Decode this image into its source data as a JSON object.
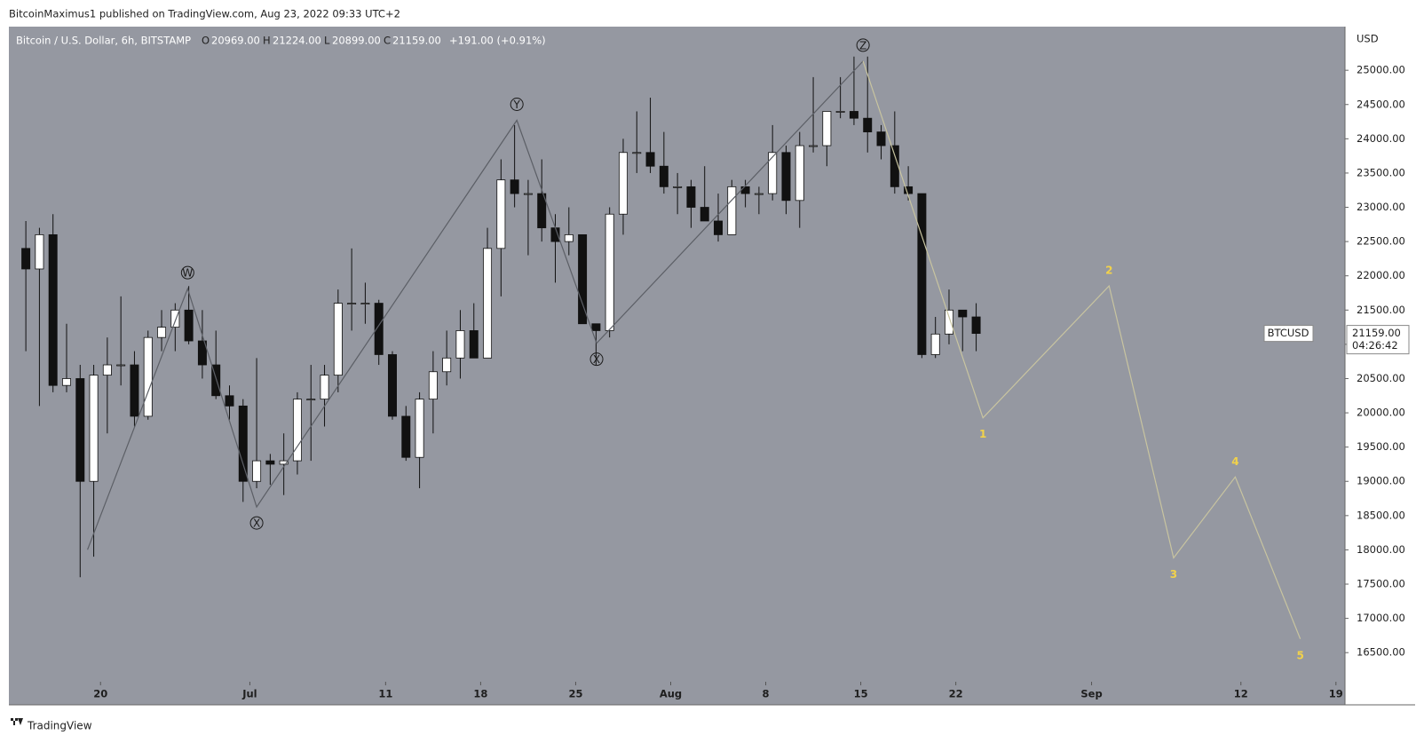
{
  "header": {
    "published": "BitcoinMaximus1 published on TradingView.com, Aug 23, 2022 09:33 UTC+2",
    "brand": "TradingView"
  },
  "chart_data": {
    "type": "candlestick",
    "legend": {
      "symbol": "Bitcoin / U.S. Dollar, 6h, BITSTAMP",
      "o_label": "O",
      "open": "20969.00",
      "h_label": "H",
      "high": "21224.00",
      "l_label": "L",
      "low": "20899.00",
      "c_label": "C",
      "close": "21159.00",
      "change": "+191.00 (+0.91%)"
    },
    "currency": "USD",
    "last": {
      "label": "BTCUSD",
      "price": 21159,
      "price_label": "21159.00",
      "countdown": "04:26:42"
    },
    "colors": {
      "up": "#ffffff",
      "down": "#111111",
      "wick": "#111111",
      "background": "#9598a1"
    },
    "x": [
      "2022-06-14",
      "2022-06-15",
      "2022-06-16",
      "2022-06-17",
      "2022-06-18",
      "2022-06-19",
      "2022-06-20",
      "2022-06-21",
      "2022-06-22",
      "2022-06-23",
      "2022-06-24",
      "2022-06-25",
      "2022-06-26",
      "2022-06-27",
      "2022-06-28",
      "2022-06-29",
      "2022-06-30",
      "2022-07-01",
      "2022-07-02",
      "2022-07-03",
      "2022-07-04",
      "2022-07-05",
      "2022-07-06",
      "2022-07-07",
      "2022-07-08",
      "2022-07-09",
      "2022-07-10",
      "2022-07-11",
      "2022-07-12",
      "2022-07-13",
      "2022-07-14",
      "2022-07-15",
      "2022-07-16",
      "2022-07-17",
      "2022-07-18",
      "2022-07-19",
      "2022-07-20",
      "2022-07-21",
      "2022-07-22",
      "2022-07-23",
      "2022-07-24",
      "2022-07-25",
      "2022-07-26",
      "2022-07-27",
      "2022-07-28",
      "2022-07-29",
      "2022-07-30",
      "2022-07-31",
      "2022-08-01",
      "2022-08-02",
      "2022-08-03",
      "2022-08-04",
      "2022-08-05",
      "2022-08-06",
      "2022-08-07",
      "2022-08-08",
      "2022-08-09",
      "2022-08-10",
      "2022-08-11",
      "2022-08-12",
      "2022-08-13",
      "2022-08-14",
      "2022-08-15",
      "2022-08-16",
      "2022-08-17",
      "2022-08-18",
      "2022-08-19",
      "2022-08-20",
      "2022-08-21",
      "2022-08-22",
      "2022-08-23"
    ],
    "open": [
      22400,
      22100,
      22600,
      20400,
      20500,
      19000,
      20550,
      20700,
      20700,
      19950,
      21100,
      21250,
      21500,
      21050,
      20700,
      20250,
      20100,
      19000,
      19300,
      19250,
      19300,
      20200,
      20200,
      20550,
      21600,
      21600,
      21600,
      20850,
      19950,
      19350,
      20200,
      20600,
      20800,
      21200,
      20800,
      22400,
      23400,
      23200,
      23200,
      22700,
      22500,
      22600,
      21300,
      21200,
      22900,
      23800,
      23800,
      23600,
      23300,
      23300,
      23000,
      22800,
      22600,
      23300,
      23200,
      23200,
      23800,
      23100,
      23900,
      23900,
      24400,
      24400,
      24300,
      24100,
      23900,
      23300,
      23200,
      20850,
      21150,
      21500,
      21400
    ],
    "high": [
      22800,
      22700,
      22900,
      21300,
      20700,
      20700,
      21100,
      21700,
      20900,
      21200,
      21500,
      21600,
      21850,
      21500,
      21200,
      20400,
      20200,
      20800,
      19400,
      19700,
      20300,
      20700,
      20700,
      21800,
      22400,
      21900,
      21650,
      20900,
      20100,
      20300,
      20900,
      21200,
      21500,
      21600,
      22700,
      23700,
      24200,
      23400,
      23700,
      22900,
      23000,
      22600,
      21300,
      23000,
      24000,
      24400,
      24600,
      24100,
      23500,
      23400,
      23600,
      23200,
      23400,
      23400,
      23300,
      24200,
      23900,
      24100,
      24900,
      24400,
      24900,
      25200,
      25200,
      24200,
      24400,
      23600,
      23200,
      21400,
      21800,
      21500,
      21600
    ],
    "low": [
      20900,
      20100,
      20300,
      20300,
      17600,
      17900,
      19700,
      20400,
      19800,
      19900,
      20900,
      20900,
      21000,
      20500,
      20200,
      19900,
      18700,
      18900,
      18950,
      18800,
      19100,
      19300,
      19800,
      20300,
      21200,
      21300,
      20700,
      19900,
      19300,
      18900,
      19700,
      20400,
      20500,
      20800,
      20800,
      21700,
      23000,
      22300,
      22500,
      21900,
      22300,
      21300,
      20700,
      21100,
      22600,
      23500,
      23500,
      23200,
      22900,
      22700,
      22800,
      22500,
      22600,
      23000,
      22900,
      23100,
      22900,
      22700,
      23800,
      23600,
      24300,
      24200,
      23800,
      23700,
      23200,
      23100,
      20800,
      20800,
      21000,
      20900,
      20900
    ],
    "close": [
      22100,
      22600,
      20400,
      20500,
      19000,
      20550,
      20700,
      20700,
      19950,
      21100,
      21250,
      21500,
      21050,
      20700,
      20250,
      20100,
      19000,
      19300,
      19250,
      19300,
      20200,
      20200,
      20550,
      21600,
      21600,
      21600,
      20850,
      19950,
      19350,
      20200,
      20600,
      20800,
      21200,
      20800,
      22400,
      23400,
      23200,
      23200,
      22700,
      22500,
      22600,
      21300,
      21200,
      22900,
      23800,
      23800,
      23600,
      23300,
      23300,
      23000,
      22800,
      22600,
      23300,
      23200,
      23200,
      23800,
      23100,
      23900,
      23900,
      24400,
      24400,
      24300,
      24100,
      23900,
      23300,
      23200,
      20850,
      21150,
      21500,
      21400,
      21159
    ],
    "waves": [
      {
        "color": "#5c5f66",
        "label_color": "#1a1a1a",
        "x": [
          "2022-06-19T01:00",
          "2022-06-26T10:00",
          "2022-07-01T12:00",
          "2022-07-20T16:00",
          "2022-07-26T13:00",
          "2022-08-15T04:00"
        ],
        "y": [
          18002,
          21813,
          18626,
          24270,
          21016,
          25133
        ],
        "labels": [
          null,
          "W",
          "X",
          "Y",
          "X",
          "Z"
        ]
      },
      {
        "color": "#c8c4a0",
        "label_color": "#f2d24a",
        "x": [
          "2022-08-15T04:00",
          "2022-08-24T00:00",
          "2022-09-02T07:00",
          "2022-09-07T01:00",
          "2022-09-11T14:00",
          "2022-09-16T09:00"
        ],
        "y": [
          25133,
          19927,
          21853,
          17882,
          19064,
          16700
        ],
        "labels": [
          null,
          "1",
          "2",
          "3",
          "4",
          "5"
        ]
      }
    ],
    "xlim": [
      "2022-06-13T06:00",
      "2022-09-19T16:00"
    ],
    "ylim": [
      16075,
      25637
    ],
    "xticks": [
      {
        "value": "2022-06-20",
        "label": "20"
      },
      {
        "value": "2022-07-01",
        "label": "Jul"
      },
      {
        "value": "2022-07-11",
        "label": "11"
      },
      {
        "value": "2022-07-18",
        "label": "18"
      },
      {
        "value": "2022-07-25",
        "label": "25"
      },
      {
        "value": "2022-08-01",
        "label": "Aug"
      },
      {
        "value": "2022-08-08",
        "label": "8"
      },
      {
        "value": "2022-08-15",
        "label": "15"
      },
      {
        "value": "2022-08-22",
        "label": "22"
      },
      {
        "value": "2022-09-01",
        "label": "Sep"
      },
      {
        "value": "2022-09-12",
        "label": "12"
      },
      {
        "value": "2022-09-19",
        "label": "19"
      }
    ],
    "yticks": [
      {
        "value": 16500,
        "label": "16500.00"
      },
      {
        "value": 17000,
        "label": "17000.00"
      },
      {
        "value": 17500,
        "label": "17500.00"
      },
      {
        "value": 18000,
        "label": "18000.00"
      },
      {
        "value": 18500,
        "label": "18500.00"
      },
      {
        "value": 19000,
        "label": "19000.00"
      },
      {
        "value": 19500,
        "label": "19500.00"
      },
      {
        "value": 20000,
        "label": "20000.00"
      },
      {
        "value": 20500,
        "label": "20500.00"
      },
      {
        "value": 21000,
        "label": "21000.00"
      },
      {
        "value": 21500,
        "label": "21500.00"
      },
      {
        "value": 22000,
        "label": "22000.00"
      },
      {
        "value": 22500,
        "label": "22500.00"
      },
      {
        "value": 23000,
        "label": "23000.00"
      },
      {
        "value": 23500,
        "label": "23500.00"
      },
      {
        "value": 24000,
        "label": "24000.00"
      },
      {
        "value": 24500,
        "label": "24500.00"
      },
      {
        "value": 25000,
        "label": "25000.00"
      }
    ]
  }
}
